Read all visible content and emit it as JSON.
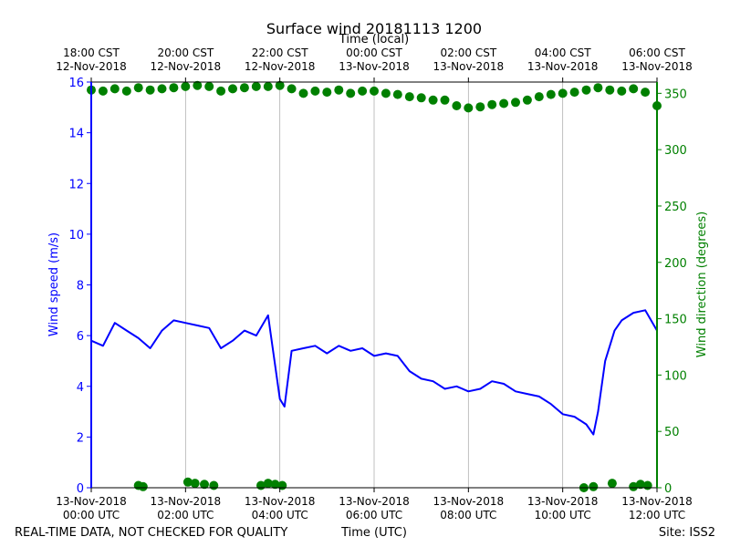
{
  "chart_data": {
    "type": "line",
    "title": "Surface wind 20181113 1200",
    "top_axis_label": "Time (local)",
    "xlabel": "Time (UTC)",
    "ylabel_left": "Wind speed (m/s)",
    "ylabel_right": "Wind direction (degrees)",
    "x_range_hours_utc": [
      0,
      12
    ],
    "ylim_left": [
      0,
      16
    ],
    "ylim_right": [
      0,
      360
    ],
    "left_ticks": [
      0,
      2,
      4,
      6,
      8,
      10,
      12,
      14,
      16
    ],
    "right_ticks": [
      0,
      50,
      100,
      150,
      200,
      250,
      300,
      350
    ],
    "grid": "vertical",
    "bottom_ticks": [
      {
        "hour": 0,
        "line1": "13-Nov-2018",
        "line2": "00:00 UTC"
      },
      {
        "hour": 2,
        "line1": "13-Nov-2018",
        "line2": "02:00 UTC"
      },
      {
        "hour": 4,
        "line1": "13-Nov-2018",
        "line2": "04:00 UTC"
      },
      {
        "hour": 6,
        "line1": "13-Nov-2018",
        "line2": "06:00 UTC"
      },
      {
        "hour": 8,
        "line1": "13-Nov-2018",
        "line2": "08:00 UTC"
      },
      {
        "hour": 10,
        "line1": "13-Nov-2018",
        "line2": "10:00 UTC"
      },
      {
        "hour": 12,
        "line1": "13-Nov-2018",
        "line2": "12:00 UTC"
      }
    ],
    "top_ticks": [
      {
        "hour": 0,
        "line1": "18:00 CST",
        "line2": "12-Nov-2018"
      },
      {
        "hour": 2,
        "line1": "20:00 CST",
        "line2": "12-Nov-2018"
      },
      {
        "hour": 4,
        "line1": "22:00 CST",
        "line2": "12-Nov-2018"
      },
      {
        "hour": 6,
        "line1": "00:00 CST",
        "line2": "13-Nov-2018"
      },
      {
        "hour": 8,
        "line1": "02:00 CST",
        "line2": "13-Nov-2018"
      },
      {
        "hour": 10,
        "line1": "04:00 CST",
        "line2": "13-Nov-2018"
      },
      {
        "hour": 12,
        "line1": "06:00 CST",
        "line2": "13-Nov-2018"
      }
    ],
    "series": [
      {
        "name": "Wind speed",
        "axis": "left",
        "color": "#0000ff",
        "style": "line",
        "x": [
          0,
          0.25,
          0.5,
          0.75,
          1,
          1.25,
          1.5,
          1.75,
          2,
          2.25,
          2.5,
          2.75,
          3,
          3.25,
          3.5,
          3.75,
          4,
          4.1,
          4.25,
          4.5,
          4.75,
          5,
          5.25,
          5.5,
          5.75,
          6,
          6.25,
          6.5,
          6.75,
          7,
          7.25,
          7.5,
          7.75,
          8,
          8.25,
          8.5,
          8.75,
          9,
          9.25,
          9.5,
          9.75,
          10,
          10.25,
          10.5,
          10.65,
          10.75,
          10.9,
          11.1,
          11.25,
          11.5,
          11.75,
          12
        ],
        "values": [
          5.8,
          5.6,
          6.5,
          6.2,
          5.9,
          5.5,
          6.2,
          6.6,
          6.5,
          6.4,
          6.3,
          5.5,
          5.8,
          6.2,
          6.0,
          6.8,
          3.5,
          3.2,
          5.4,
          5.5,
          5.6,
          5.3,
          5.6,
          5.4,
          5.5,
          5.2,
          5.3,
          5.2,
          4.6,
          4.3,
          4.2,
          3.9,
          4.0,
          3.8,
          3.9,
          4.2,
          4.1,
          3.8,
          3.7,
          3.6,
          3.3,
          2.9,
          2.8,
          2.5,
          2.1,
          3.0,
          5.0,
          6.2,
          6.6,
          6.9,
          7.0,
          6.2
        ]
      },
      {
        "name": "Wind direction",
        "axis": "right",
        "color": "#008000",
        "style": "scatter",
        "x": [
          0,
          0.25,
          0.5,
          0.75,
          1,
          1.25,
          1.5,
          1.75,
          2,
          2.25,
          2.5,
          2.75,
          3,
          3.25,
          3.5,
          3.75,
          4,
          4.25,
          4.5,
          4.75,
          5,
          5.25,
          5.5,
          5.75,
          6,
          6.25,
          6.5,
          6.75,
          7,
          7.25,
          7.5,
          7.75,
          8,
          8.25,
          8.5,
          8.75,
          9,
          9.25,
          9.5,
          9.75,
          10,
          10.25,
          10.5,
          10.75,
          11,
          11.25,
          11.5,
          11.75,
          12,
          1.0,
          1.1,
          2.05,
          2.2,
          2.4,
          2.6,
          3.6,
          3.75,
          3.9,
          4.05,
          10.45,
          10.65,
          11.05,
          11.5,
          11.65,
          11.8
        ],
        "values": [
          353,
          352,
          354,
          352,
          355,
          353,
          354,
          355,
          356,
          357,
          356,
          352,
          354,
          355,
          356,
          356,
          357,
          354,
          350,
          352,
          351,
          353,
          350,
          352,
          352,
          350,
          349,
          347,
          346,
          344,
          344,
          339,
          337,
          338,
          340,
          341,
          342,
          344,
          347,
          349,
          350,
          351,
          353,
          355,
          353,
          352,
          354,
          351,
          339,
          2,
          1,
          5,
          4,
          3,
          2,
          2,
          4,
          3,
          2,
          0,
          1,
          4,
          1,
          3,
          2
        ]
      }
    ]
  },
  "footer": {
    "disclaimer": "REAL-TIME DATA, NOT CHECKED FOR QUALITY",
    "site": "Site: ISS2"
  }
}
